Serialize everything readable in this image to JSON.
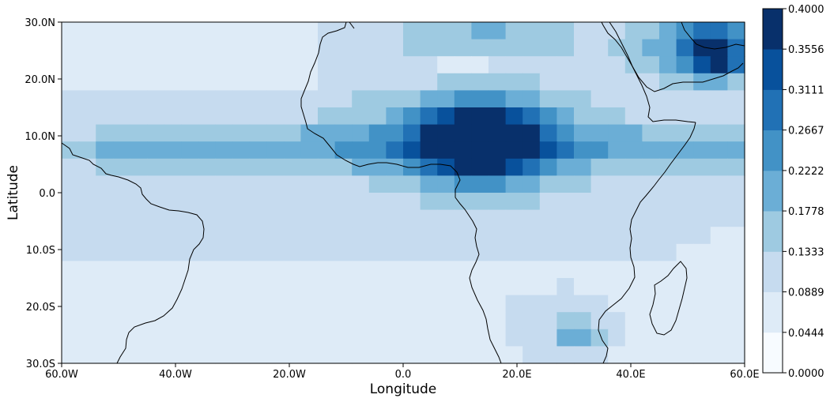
{
  "chart_data": {
    "type": "heatmap",
    "xlabel": "Longitude",
    "ylabel": "Latitude",
    "xlim": [
      -60,
      60
    ],
    "ylim": [
      -30,
      30
    ],
    "xticks": [
      {
        "value": -60,
        "label": "60.0W"
      },
      {
        "value": -40,
        "label": "40.0W"
      },
      {
        "value": -20,
        "label": "20.0W"
      },
      {
        "value": 0,
        "label": "0.0"
      },
      {
        "value": 20,
        "label": "20.0E"
      },
      {
        "value": 40,
        "label": "40.0E"
      },
      {
        "value": 60,
        "label": "60.0E"
      }
    ],
    "yticks": [
      {
        "value": 30,
        "label": "30.0N"
      },
      {
        "value": 20,
        "label": "20.0N"
      },
      {
        "value": 10,
        "label": "10.0N"
      },
      {
        "value": 0,
        "label": "0.0"
      },
      {
        "value": -10,
        "label": "10.0S"
      },
      {
        "value": -20,
        "label": "20.0S"
      },
      {
        "value": -30,
        "label": "30.0S"
      }
    ],
    "colorbar": {
      "levels": [
        0.0,
        0.0444,
        0.0889,
        0.1333,
        0.1778,
        0.2222,
        0.2667,
        0.3111,
        0.3556,
        0.4
      ],
      "labels": [
        "0.0000",
        "0.0444",
        "0.0889",
        "0.1333",
        "0.1778",
        "0.2222",
        "0.2667",
        "0.3111",
        "0.3556",
        "0.4000"
      ],
      "colors": [
        "#f7fbff",
        "#deebf7",
        "#c6dbef",
        "#9ecae1",
        "#6baed6",
        "#4292c6",
        "#2171b5",
        "#08519c",
        "#08306b"
      ]
    },
    "features": [
      "coastlines"
    ]
  }
}
